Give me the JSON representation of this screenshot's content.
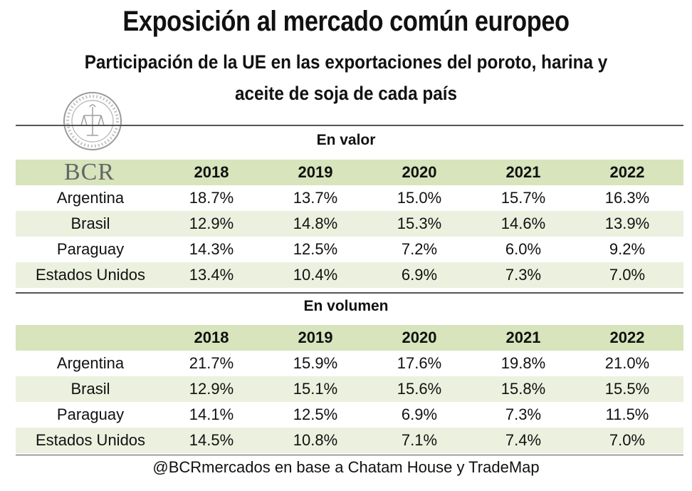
{
  "title": "Exposición al mercado común europeo",
  "subtitle_line1": "Participación de la UE en las exportaciones del poroto, harina y",
  "subtitle_line2": "aceite de soja de cada país",
  "logo_text": "BCR",
  "source": "@BCRmercados en base a Chatam House y TradeMap",
  "chart_data": [
    {
      "type": "table",
      "title": "En valor",
      "columns": [
        "2018",
        "2019",
        "2020",
        "2021",
        "2022"
      ],
      "rows": [
        {
          "country": "Argentina",
          "values": [
            "18.7%",
            "13.7%",
            "15.0%",
            "15.7%",
            "16.3%"
          ]
        },
        {
          "country": "Brasil",
          "values": [
            "12.9%",
            "14.8%",
            "15.3%",
            "14.6%",
            "13.9%"
          ]
        },
        {
          "country": "Paraguay",
          "values": [
            "14.3%",
            "12.5%",
            "7.2%",
            "6.0%",
            "9.2%"
          ]
        },
        {
          "country": "Estados Unidos",
          "values": [
            "13.4%",
            "10.4%",
            "6.9%",
            "7.3%",
            "7.0%"
          ]
        }
      ]
    },
    {
      "type": "table",
      "title": "En volumen",
      "columns": [
        "2018",
        "2019",
        "2020",
        "2021",
        "2022"
      ],
      "rows": [
        {
          "country": "Argentina",
          "values": [
            "21.7%",
            "15.9%",
            "17.6%",
            "19.8%",
            "21.0%"
          ]
        },
        {
          "country": "Brasil",
          "values": [
            "12.9%",
            "15.1%",
            "15.6%",
            "15.8%",
            "15.5%"
          ]
        },
        {
          "country": "Paraguay",
          "values": [
            "14.1%",
            "12.5%",
            "6.9%",
            "7.3%",
            "11.5%"
          ]
        },
        {
          "country": "Estados Unidos",
          "values": [
            "14.5%",
            "10.8%",
            "7.1%",
            "7.4%",
            "7.0%"
          ]
        }
      ]
    }
  ]
}
